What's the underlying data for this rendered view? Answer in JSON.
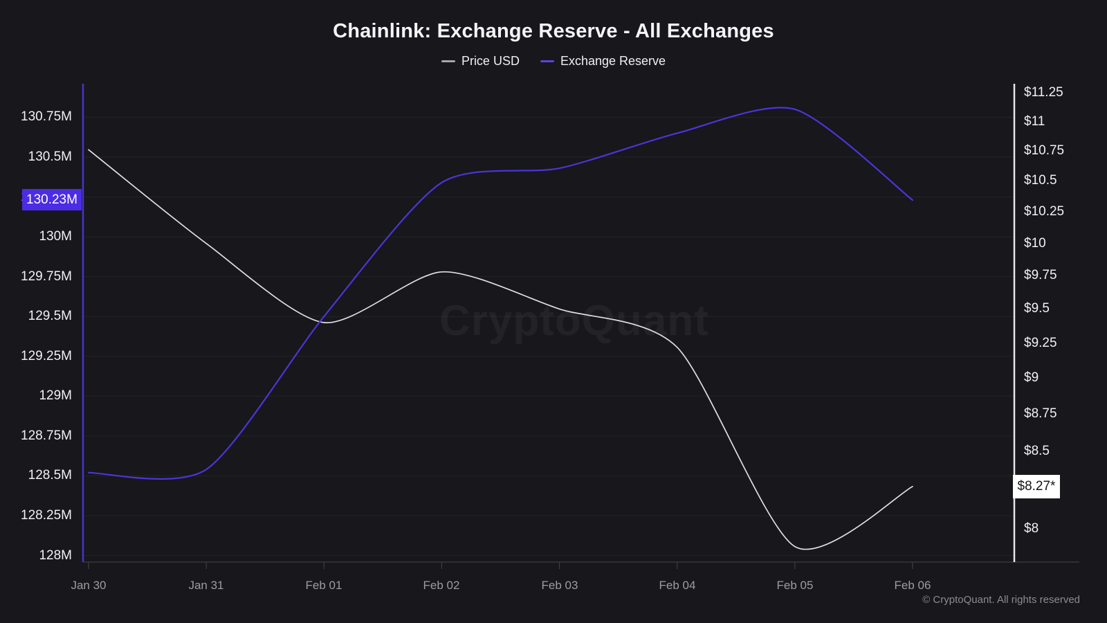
{
  "title": "Chainlink: Exchange Reserve - All Exchanges",
  "legend": [
    {
      "label": "Price USD",
      "color": "#a5a5ad"
    },
    {
      "label": "Exchange Reserve",
      "color": "#5b43e0"
    }
  ],
  "watermark": "CryptoQuant",
  "footer": "© CryptoQuant. All rights reserved",
  "current_badges": {
    "reserve": {
      "label": "130.23M",
      "bg": "#4c2ce4",
      "text_color": "#ffffff"
    },
    "price": {
      "label": "$8.27*",
      "bg": "#ffffff",
      "text_color": "#141418"
    }
  },
  "colors": {
    "background": "#17171c",
    "price_line": "#dfdfe4",
    "reserve_line": "#4b35d8",
    "left_axis_line": "#4733d0",
    "right_axis_line": "#e8e8ec",
    "gridline": "rgba(255,255,255,0.055)",
    "x_axis_line": "#44444c"
  },
  "chart_data": {
    "type": "line",
    "x": [
      "Jan 30",
      "Jan 31",
      "Feb 01",
      "Feb 02",
      "Feb 03",
      "Feb 04",
      "Feb 05",
      "Feb 06"
    ],
    "series": [
      {
        "name": "Price USD",
        "axis": "right",
        "unit": "USD",
        "values": [
          10.76,
          10.0,
          9.4,
          9.78,
          9.5,
          9.22,
          7.89,
          8.27
        ]
      },
      {
        "name": "Exchange Reserve",
        "axis": "left",
        "unit": "LINK (millions)",
        "values": [
          128.52,
          128.54,
          129.5,
          130.34,
          130.43,
          130.65,
          130.8,
          130.23
        ]
      }
    ],
    "left_axis": {
      "title": "Exchange Reserve",
      "scale": "linear",
      "range": [
        128.0,
        130.97
      ],
      "ticks": [
        "130.75M",
        "130.5M",
        "130.25M",
        "130M",
        "129.75M",
        "129.5M",
        "129.25M",
        "129M",
        "128.75M",
        "128.5M",
        "128.25M",
        "128M"
      ],
      "tick_values": [
        130.75,
        130.5,
        130.25,
        130.0,
        129.75,
        129.5,
        129.25,
        129.0,
        128.75,
        128.5,
        128.25,
        128.0
      ],
      "current": 130.23
    },
    "right_axis": {
      "title": "Price USD",
      "scale": "log",
      "range": [
        7.79,
        11.33
      ],
      "ticks": [
        "$11.25",
        "$11",
        "$10.75",
        "$10.5",
        "$10.25",
        "$10",
        "$9.75",
        "$9.5",
        "$9.25",
        "$9",
        "$8.75",
        "$8.5",
        "$8"
      ],
      "tick_values": [
        11.25,
        11.0,
        10.75,
        10.5,
        10.25,
        10.0,
        9.75,
        9.5,
        9.25,
        9.0,
        8.75,
        8.5,
        8.0
      ],
      "current": 8.27
    },
    "grid": "horizontal",
    "legend_position": "top"
  }
}
